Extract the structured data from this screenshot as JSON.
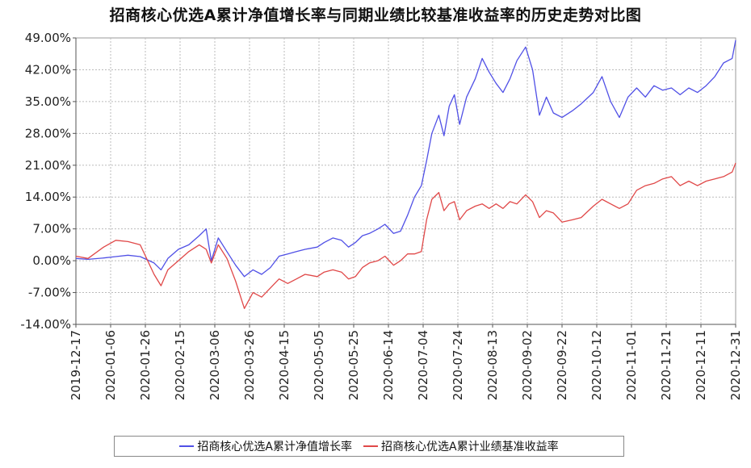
{
  "chart_data": {
    "type": "line",
    "title": "招商核心优选A累计净值增长率与同期业绩比较基准收益率的历史走势对比图",
    "ylim": [
      -14,
      49
    ],
    "yticks": [
      "49.00%",
      "42.00%",
      "35.00%",
      "28.00%",
      "21.00%",
      "14.00%",
      "7.00%",
      "0.00%",
      "-7.00%",
      "-14.00%"
    ],
    "ytick_values": [
      49,
      42,
      35,
      28,
      21,
      14,
      7,
      0,
      -7,
      -14
    ],
    "xlim": [
      "2019-12-17",
      "2020-12-31"
    ],
    "xticks": [
      "2019-12-17",
      "2020-01-06",
      "2020-01-26",
      "2020-02-15",
      "2020-03-06",
      "2020-03-26",
      "2020-04-15",
      "2020-05-05",
      "2020-05-25",
      "2020-06-14",
      "2020-07-04",
      "2020-07-24",
      "2020-08-13",
      "2020-09-02",
      "2020-09-22",
      "2020-10-12",
      "2020-11-01",
      "2020-11-21",
      "2020-12-11",
      "2020-12-31"
    ],
    "grid": true,
    "legend_position": "bottom",
    "series": [
      {
        "name": "招商核心优选A累计净值增长率",
        "color": "#5050e6",
        "points": [
          [
            "2019-12-17",
            0.5
          ],
          [
            "2019-12-24",
            0.3
          ],
          [
            "2020-01-02",
            0.6
          ],
          [
            "2020-01-09",
            0.9
          ],
          [
            "2020-01-16",
            1.2
          ],
          [
            "2020-01-23",
            0.9
          ],
          [
            "2020-01-31",
            -0.5
          ],
          [
            "2020-02-04",
            -2.0
          ],
          [
            "2020-02-08",
            0.5
          ],
          [
            "2020-02-14",
            2.5
          ],
          [
            "2020-02-20",
            3.5
          ],
          [
            "2020-02-26",
            5.5
          ],
          [
            "2020-03-01",
            7.0
          ],
          [
            "2020-03-04",
            0.0
          ],
          [
            "2020-03-08",
            5.0
          ],
          [
            "2020-03-13",
            2.0
          ],
          [
            "2020-03-18",
            -1.0
          ],
          [
            "2020-03-23",
            -3.5
          ],
          [
            "2020-03-28",
            -2.0
          ],
          [
            "2020-04-02",
            -3.0
          ],
          [
            "2020-04-07",
            -1.5
          ],
          [
            "2020-04-12",
            1.0
          ],
          [
            "2020-04-17",
            1.5
          ],
          [
            "2020-04-22",
            2.0
          ],
          [
            "2020-04-27",
            2.5
          ],
          [
            "2020-05-04",
            3.0
          ],
          [
            "2020-05-08",
            4.0
          ],
          [
            "2020-05-13",
            5.0
          ],
          [
            "2020-05-18",
            4.5
          ],
          [
            "2020-05-22",
            3.0
          ],
          [
            "2020-05-26",
            4.0
          ],
          [
            "2020-05-30",
            5.5
          ],
          [
            "2020-06-03",
            6.0
          ],
          [
            "2020-06-08",
            7.0
          ],
          [
            "2020-06-12",
            8.0
          ],
          [
            "2020-06-17",
            6.0
          ],
          [
            "2020-06-21",
            6.5
          ],
          [
            "2020-06-25",
            10.0
          ],
          [
            "2020-06-29",
            14.0
          ],
          [
            "2020-07-03",
            16.5
          ],
          [
            "2020-07-06",
            22.0
          ],
          [
            "2020-07-09",
            28.0
          ],
          [
            "2020-07-13",
            32.0
          ],
          [
            "2020-07-16",
            27.5
          ],
          [
            "2020-07-19",
            34.0
          ],
          [
            "2020-07-22",
            36.5
          ],
          [
            "2020-07-25",
            30.0
          ],
          [
            "2020-07-29",
            36.0
          ],
          [
            "2020-08-03",
            40.0
          ],
          [
            "2020-08-07",
            44.5
          ],
          [
            "2020-08-11",
            41.5
          ],
          [
            "2020-08-15",
            39.0
          ],
          [
            "2020-08-19",
            37.0
          ],
          [
            "2020-08-23",
            40.0
          ],
          [
            "2020-08-27",
            44.0
          ],
          [
            "2020-09-01",
            47.0
          ],
          [
            "2020-09-05",
            42.0
          ],
          [
            "2020-09-09",
            32.0
          ],
          [
            "2020-09-13",
            36.0
          ],
          [
            "2020-09-17",
            32.5
          ],
          [
            "2020-09-22",
            31.5
          ],
          [
            "2020-09-28",
            33.0
          ],
          [
            "2020-10-03",
            34.5
          ],
          [
            "2020-10-10",
            37.0
          ],
          [
            "2020-10-15",
            40.5
          ],
          [
            "2020-10-20",
            35.0
          ],
          [
            "2020-10-25",
            31.5
          ],
          [
            "2020-10-30",
            36.0
          ],
          [
            "2020-11-04",
            38.0
          ],
          [
            "2020-11-09",
            36.0
          ],
          [
            "2020-11-14",
            38.5
          ],
          [
            "2020-11-19",
            37.5
          ],
          [
            "2020-11-24",
            38.0
          ],
          [
            "2020-11-29",
            36.5
          ],
          [
            "2020-12-04",
            38.0
          ],
          [
            "2020-12-09",
            37.0
          ],
          [
            "2020-12-14",
            38.5
          ],
          [
            "2020-12-19",
            40.5
          ],
          [
            "2020-12-24",
            43.5
          ],
          [
            "2020-12-29",
            44.5
          ],
          [
            "2020-12-31",
            48.5
          ]
        ]
      },
      {
        "name": "招商核心优选A累计业绩基准收益率",
        "color": "#e04848",
        "points": [
          [
            "2019-12-17",
            1.0
          ],
          [
            "2019-12-24",
            0.5
          ],
          [
            "2020-01-02",
            3.0
          ],
          [
            "2020-01-09",
            4.5
          ],
          [
            "2020-01-16",
            4.2
          ],
          [
            "2020-01-23",
            3.5
          ],
          [
            "2020-01-31",
            -3.0
          ],
          [
            "2020-02-04",
            -5.5
          ],
          [
            "2020-02-08",
            -2.0
          ],
          [
            "2020-02-14",
            0.0
          ],
          [
            "2020-02-20",
            2.0
          ],
          [
            "2020-02-26",
            3.5
          ],
          [
            "2020-03-01",
            2.5
          ],
          [
            "2020-03-04",
            -0.5
          ],
          [
            "2020-03-08",
            3.5
          ],
          [
            "2020-03-13",
            0.5
          ],
          [
            "2020-03-18",
            -4.5
          ],
          [
            "2020-03-23",
            -10.5
          ],
          [
            "2020-03-28",
            -7.0
          ],
          [
            "2020-04-02",
            -8.0
          ],
          [
            "2020-04-07",
            -6.0
          ],
          [
            "2020-04-12",
            -4.0
          ],
          [
            "2020-04-17",
            -5.0
          ],
          [
            "2020-04-22",
            -4.0
          ],
          [
            "2020-04-27",
            -3.0
          ],
          [
            "2020-05-04",
            -3.5
          ],
          [
            "2020-05-08",
            -2.5
          ],
          [
            "2020-05-13",
            -2.0
          ],
          [
            "2020-05-18",
            -2.5
          ],
          [
            "2020-05-22",
            -4.0
          ],
          [
            "2020-05-26",
            -3.5
          ],
          [
            "2020-05-30",
            -1.5
          ],
          [
            "2020-06-03",
            -0.5
          ],
          [
            "2020-06-08",
            0.0
          ],
          [
            "2020-06-12",
            1.0
          ],
          [
            "2020-06-17",
            -1.0
          ],
          [
            "2020-06-21",
            0.0
          ],
          [
            "2020-06-25",
            1.5
          ],
          [
            "2020-06-29",
            1.5
          ],
          [
            "2020-07-03",
            2.0
          ],
          [
            "2020-07-06",
            9.0
          ],
          [
            "2020-07-09",
            13.5
          ],
          [
            "2020-07-13",
            15.0
          ],
          [
            "2020-07-16",
            11.0
          ],
          [
            "2020-07-19",
            12.5
          ],
          [
            "2020-07-22",
            13.0
          ],
          [
            "2020-07-25",
            9.0
          ],
          [
            "2020-07-29",
            11.0
          ],
          [
            "2020-08-03",
            12.0
          ],
          [
            "2020-08-07",
            12.5
          ],
          [
            "2020-08-11",
            11.5
          ],
          [
            "2020-08-15",
            12.5
          ],
          [
            "2020-08-19",
            11.5
          ],
          [
            "2020-08-23",
            13.0
          ],
          [
            "2020-08-27",
            12.5
          ],
          [
            "2020-09-01",
            14.5
          ],
          [
            "2020-09-05",
            13.0
          ],
          [
            "2020-09-09",
            9.5
          ],
          [
            "2020-09-13",
            11.0
          ],
          [
            "2020-09-17",
            10.5
          ],
          [
            "2020-09-22",
            8.5
          ],
          [
            "2020-09-28",
            9.0
          ],
          [
            "2020-10-03",
            9.5
          ],
          [
            "2020-10-10",
            12.0
          ],
          [
            "2020-10-15",
            13.5
          ],
          [
            "2020-10-20",
            12.5
          ],
          [
            "2020-10-25",
            11.5
          ],
          [
            "2020-10-30",
            12.5
          ],
          [
            "2020-11-04",
            15.5
          ],
          [
            "2020-11-09",
            16.5
          ],
          [
            "2020-11-14",
            17.0
          ],
          [
            "2020-11-19",
            18.0
          ],
          [
            "2020-11-24",
            18.5
          ],
          [
            "2020-11-29",
            16.5
          ],
          [
            "2020-12-04",
            17.5
          ],
          [
            "2020-12-09",
            16.5
          ],
          [
            "2020-12-14",
            17.5
          ],
          [
            "2020-12-19",
            18.0
          ],
          [
            "2020-12-24",
            18.5
          ],
          [
            "2020-12-29",
            19.5
          ],
          [
            "2020-12-31",
            21.5
          ]
        ]
      }
    ]
  }
}
